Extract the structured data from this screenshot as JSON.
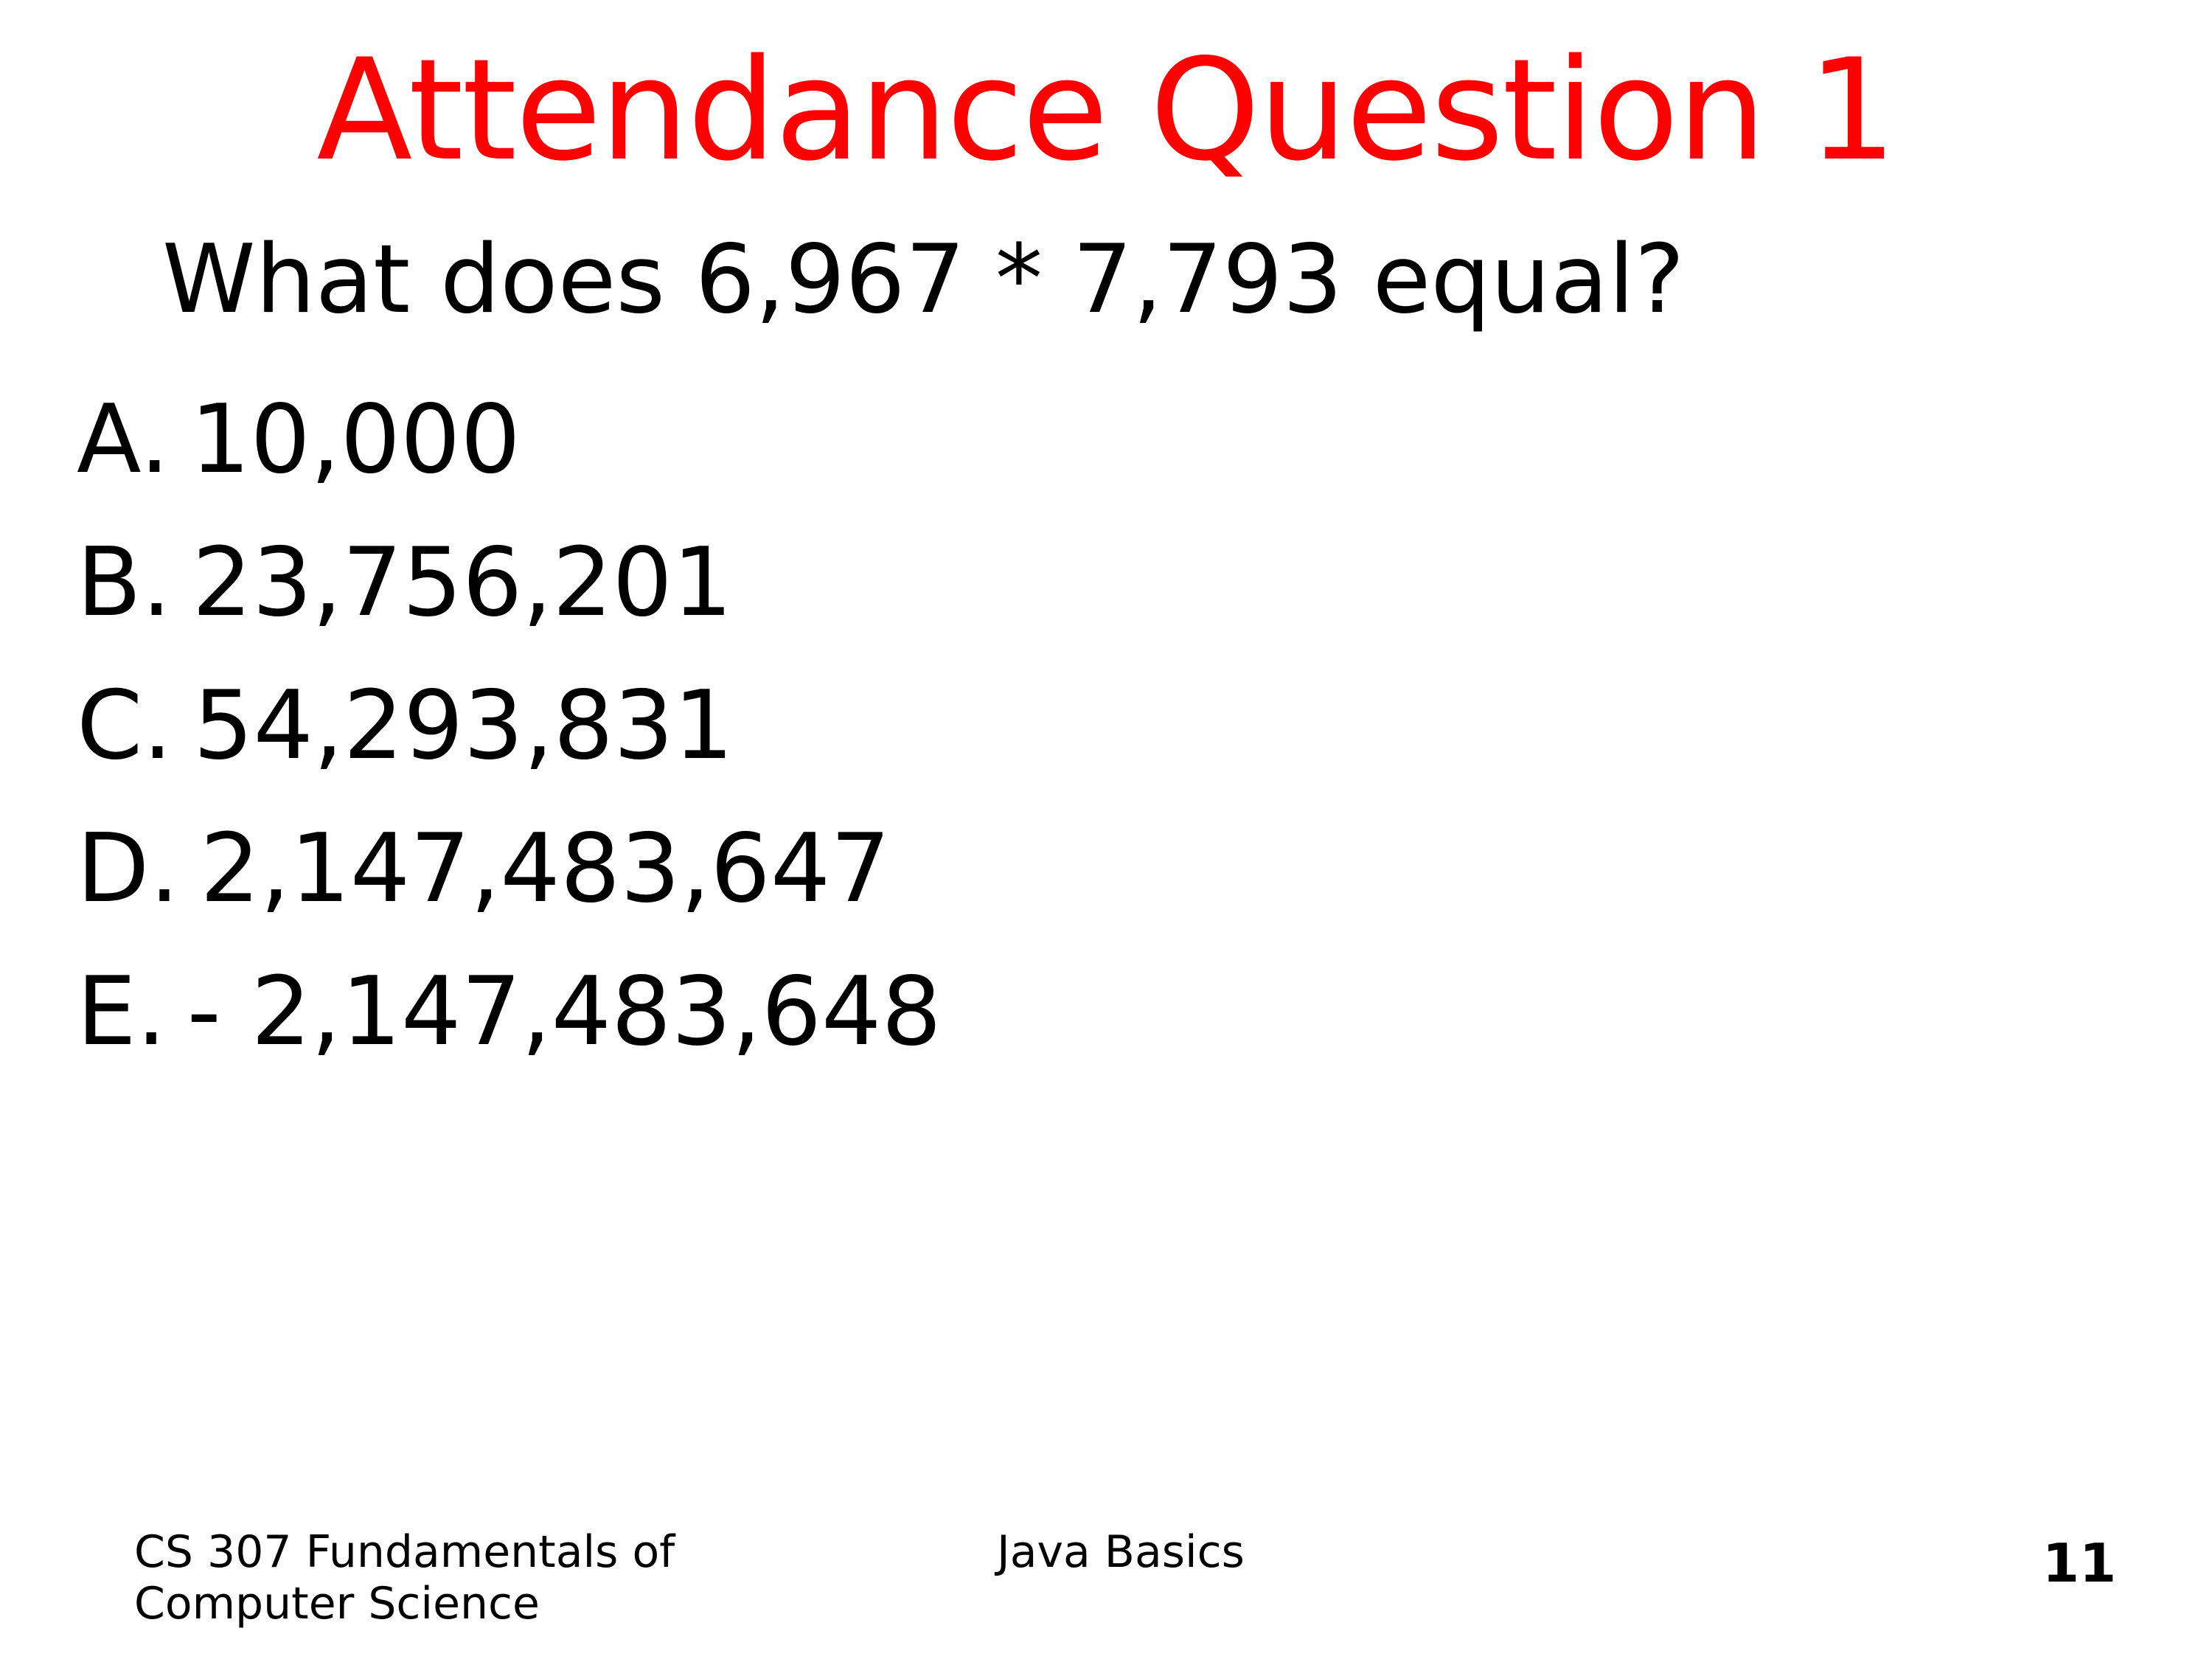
{
  "slide": {
    "title": "Attendance Question 1",
    "question": "What does 6,967 * 7,793 equal?",
    "options": [
      {
        "letter": "A.",
        "text": "10,000"
      },
      {
        "letter": "B.",
        "text": "23,756,201"
      },
      {
        "letter": "C.",
        "text": "54,293,831"
      },
      {
        "letter": "D.",
        "text": "2,147,483,647"
      },
      {
        "letter": "E.",
        "text": "- 2,147,483,648"
      }
    ]
  },
  "footer": {
    "course_line1": "CS 307 Fundamentals of",
    "course_line2": "Computer Science",
    "topic": "Java Basics",
    "page_number": "11"
  },
  "colors": {
    "title": "#ff0000",
    "text": "#000000",
    "background": "#ffffff"
  }
}
